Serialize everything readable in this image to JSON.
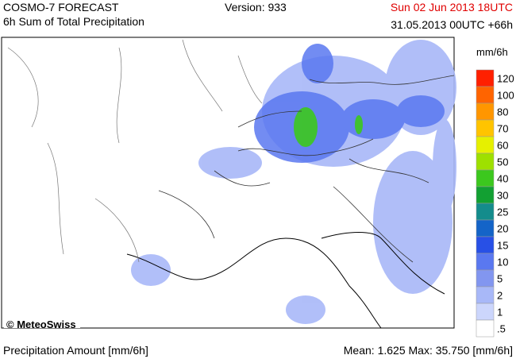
{
  "header": {
    "title": "COSMO-7 FORECAST",
    "subtitle": "6h Sum of Total Precipitation",
    "version": "Version: 933",
    "valid_time": "Sun 02 Jun 2013 18UTC",
    "run_time": "31.05.2013 00UTC +66h"
  },
  "map": {
    "copyright": "© MeteoSwiss"
  },
  "legend": {
    "unit": "mm/6h",
    "items": [
      {
        "label": "120",
        "color": "#ff2000"
      },
      {
        "label": "100",
        "color": "#ff6400"
      },
      {
        "label": "80",
        "color": "#ff9600"
      },
      {
        "label": "70",
        "color": "#ffc400"
      },
      {
        "label": "60",
        "color": "#e6f000"
      },
      {
        "label": "50",
        "color": "#9ee000"
      },
      {
        "label": "40",
        "color": "#3cc81e"
      },
      {
        "label": "30",
        "color": "#12a032"
      },
      {
        "label": "25",
        "color": "#148c8c"
      },
      {
        "label": "20",
        "color": "#1464c8"
      },
      {
        "label": "15",
        "color": "#2850e6"
      },
      {
        "label": "10",
        "color": "#5a78f0"
      },
      {
        "label": "5",
        "color": "#8296f0"
      },
      {
        "label": "2",
        "color": "#a8b8f8"
      },
      {
        "label": "1",
        "color": "#ccd6fc"
      },
      {
        "label": ".5",
        "color": "#ffffff"
      }
    ]
  },
  "footer": {
    "left": "Precipitation Amount [mm/6h]",
    "right": "Mean:  1.625 Max:  35.750 [mm/6h]"
  }
}
